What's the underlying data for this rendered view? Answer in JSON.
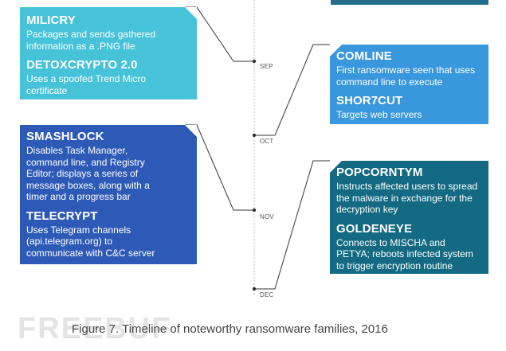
{
  "colors": {
    "cyan": "#46c3d9",
    "light_blue": "#3897dd",
    "royal_blue": "#2e5ab7",
    "teal": "#136a82",
    "top_bar": "#24708c",
    "connector": "#333333",
    "axis": "#bbbbbb"
  },
  "months": [
    "SEP",
    "OCT",
    "NOV",
    "DEC"
  ],
  "cards": {
    "cyan": [
      {
        "name": "MILICRY",
        "desc": "Packages and sends gathered\ninformation as a .PNG file"
      },
      {
        "name": "DETOXCRYPTO 2.0",
        "desc": "Uses a spoofed Trend Micro\ncertificate"
      }
    ],
    "light_blue": [
      {
        "name": "COMLINE",
        "desc": "First ransomware seen that uses\ncommand line to execute"
      },
      {
        "name": "SHOR7CUT",
        "desc": "Targets web servers"
      }
    ],
    "royal_blue": [
      {
        "name": "SMASHLOCK",
        "desc": "Disables Task Manager,\ncommand line, and Registry\nEditor; displays a series of\nmessage boxes, along with a\ntimer and a progress bar"
      },
      {
        "name": "TELECRYPT",
        "desc": "Uses Telegram channels\n(api.telegram.org) to\ncommunicate with C&C server"
      }
    ],
    "teal": [
      {
        "name": "POPCORNTYM",
        "desc": "Instructs affected users to spread\nthe malware in exchange for the\ndecryption key"
      },
      {
        "name": "GOLDENEYE",
        "desc": "Connects to MISCHA and\nPETYA; reboots infected system\nto trigger encryption routine"
      }
    ]
  },
  "caption": "Figure 7. Timeline of noteworthy ransomware families, 2016",
  "watermark": "FREEBUF"
}
